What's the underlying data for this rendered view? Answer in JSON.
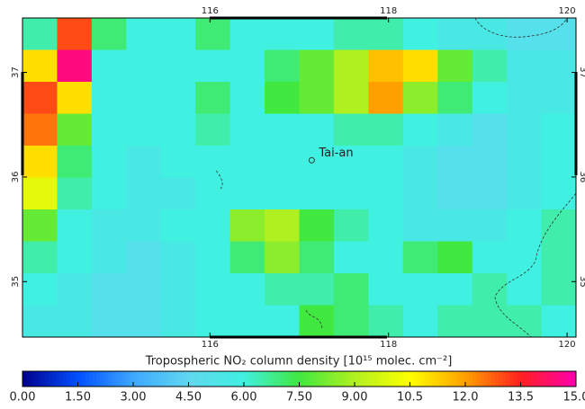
{
  "map": {
    "xlim": [
      113.9,
      120.1
    ],
    "ylim": [
      34.47,
      37.52
    ],
    "lon_ticks": [
      116,
      118,
      120
    ],
    "lat_ticks": [
      37,
      36,
      35
    ],
    "place": {
      "label": "Tai-an",
      "lon": 117.14,
      "lat": 36.16
    },
    "grid": [
      [
        6.5,
        13,
        7,
        6,
        6,
        7,
        6,
        6,
        6,
        6.5,
        6.5,
        6,
        5.5,
        5.5,
        5,
        5
      ],
      [
        11,
        14.5,
        6,
        6,
        6,
        6,
        6,
        7,
        8,
        9,
        11.5,
        11,
        8,
        6.5,
        5.5,
        5.5
      ],
      [
        13,
        11,
        6,
        6,
        6,
        7,
        6,
        7.5,
        8,
        9,
        12,
        8.5,
        7,
        6,
        5.5,
        5.5
      ],
      [
        12.5,
        8,
        6,
        6,
        6,
        6.5,
        6,
        6,
        6,
        6.5,
        6.5,
        6,
        5.5,
        5,
        5.5,
        6
      ],
      [
        11,
        7,
        6,
        5.5,
        6,
        6,
        6,
        6,
        6,
        6,
        6,
        5.5,
        5,
        5,
        5.5,
        6
      ],
      [
        10,
        6.5,
        6,
        5.5,
        5.5,
        6,
        6,
        6,
        6,
        6,
        6,
        5.5,
        5,
        5,
        5.5,
        6
      ],
      [
        8,
        6,
        5.5,
        5.5,
        6,
        6,
        8.5,
        9,
        7.5,
        6.5,
        6,
        5.5,
        5.5,
        5.5,
        6,
        6.5
      ],
      [
        6.5,
        6,
        5.5,
        5,
        5.5,
        6,
        7,
        8.5,
        7,
        6,
        6,
        7,
        7.5,
        6,
        6,
        6.5
      ],
      [
        6,
        5.5,
        5,
        5,
        5.5,
        6,
        6,
        6.5,
        6.5,
        7,
        6,
        6,
        6,
        6.5,
        6,
        6.5
      ],
      [
        5.5,
        5.5,
        5,
        5,
        5.5,
        6,
        6,
        6,
        7.5,
        7,
        6.5,
        6,
        6.5,
        6.5,
        6.5,
        6
      ]
    ]
  },
  "colorbar": {
    "title": "Tropospheric NO₂ column density [10¹⁵ molec. cm⁻²]",
    "lim": [
      0,
      15
    ],
    "colors": [
      "#00008c",
      "#0050ff",
      "#3fa8ff",
      "#5fd8f0",
      "#40f0e0",
      "#40e840",
      "#b0f020",
      "#ffff00",
      "#ffa000",
      "#ff2020",
      "#ff00b0"
    ],
    "ticks": [
      {
        "value": 0,
        "label": "0.00"
      },
      {
        "value": 1.5,
        "label": "1.50"
      },
      {
        "value": 3,
        "label": "3.00"
      },
      {
        "value": 4.5,
        "label": "4.50"
      },
      {
        "value": 6,
        "label": "6.00"
      },
      {
        "value": 7.5,
        "label": "7.50"
      },
      {
        "value": 9,
        "label": "9.00"
      },
      {
        "value": 10.5,
        "label": "10.5"
      },
      {
        "value": 12,
        "label": "12.0"
      },
      {
        "value": 13.5,
        "label": "13.5"
      },
      {
        "value": 15,
        "label": "15.0"
      }
    ]
  }
}
